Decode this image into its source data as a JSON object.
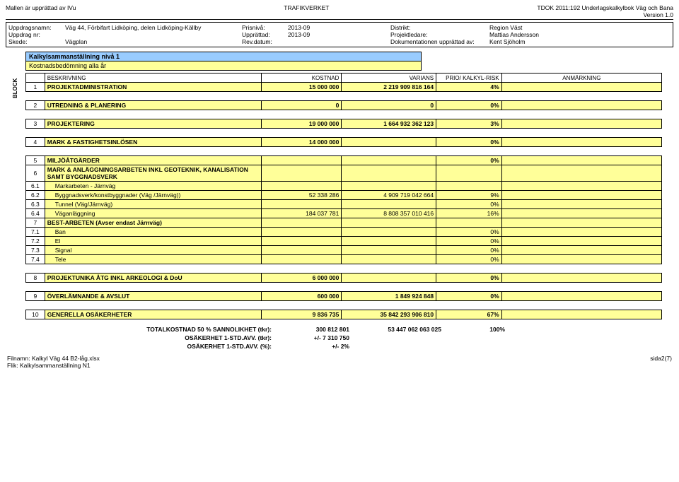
{
  "header": {
    "left": "Mallen är upprättad av IVu",
    "center": "TRAFIKVERKET",
    "right1": "TDOK 2011:192 Underlagskalkylbok Väg och Bana",
    "right2": "Version 1.0"
  },
  "meta": {
    "rows": [
      {
        "l1": "Uppdragsnamn:",
        "v1": "Väg 44, Förbifart Lidköping, delen Lidköping-Källby",
        "l2": "Prisnivå:",
        "v2": "2013-09",
        "l3": "Distrikt:",
        "v3": "Region Väst"
      },
      {
        "l1": "Uppdrag nr:",
        "v1": "",
        "l2": "Upprättad:",
        "v2": "2013-09",
        "l3": "Projektledare:",
        "v3": "Mattias Andersson"
      },
      {
        "l1": "Skede:",
        "v1": "Vägplan",
        "l2": "Rev.datum:",
        "v2": "",
        "l3": "Dokumentationen upprättad av:",
        "v3": "Kent Sjöholm"
      }
    ]
  },
  "title": {
    "line1": "Kalkylsammanställning nivå 1",
    "line2": "Kostnadsbedömning alla år"
  },
  "block_label": "BLOCK",
  "columns": {
    "desc": "BESKRIVNING",
    "kost": "KOSTNAD",
    "var": "VARIANS",
    "risk": "PRIO/ KALKYL-RISK",
    "anm": "ANMÄRKNING"
  },
  "groups": [
    {
      "id": "1",
      "desc": "PROJEKTADMINISTRATION",
      "kost": "15 000 000",
      "var": "2 219 909 816 164",
      "risk": "4%",
      "bold": true,
      "yellow": true
    },
    {
      "spacer": true
    },
    {
      "id": "2",
      "desc": "UTREDNING & PLANERING",
      "kost": "0",
      "var": "0",
      "risk": "0%",
      "bold": true,
      "yellow": true
    },
    {
      "spacer": true
    },
    {
      "id": "3",
      "desc": "PROJEKTERING",
      "kost": "19 000 000",
      "var": "1 664 932 362 123",
      "risk": "3%",
      "bold": true,
      "yellow": true
    },
    {
      "spacer": true
    },
    {
      "id": "4",
      "desc": "MARK & FASTIGHETSINLÖSEN",
      "kost": "14 000 000",
      "var": "",
      "risk": "0%",
      "bold": true,
      "yellow": true
    },
    {
      "spacer": true
    },
    {
      "id": "5",
      "desc": "MILJÖÅTGÄRDER",
      "kost": "",
      "var": "",
      "risk": "0%",
      "bold": true,
      "yellow": true
    },
    {
      "id": "6",
      "desc": "MARK & ANLÄGGNINGSARBETEN INKL GEOTEKNIK, KANALISATION SAMT BYGGNADSVERK",
      "kost": "",
      "var": "",
      "risk": "",
      "bold": true,
      "yellow": true
    },
    {
      "id": "6.1",
      "desc": "Markarbeten - Järnväg",
      "kost": "",
      "var": "",
      "risk": "",
      "indent": true,
      "yellow": true
    },
    {
      "id": "6.2",
      "desc": "Byggnadsverk/konstbyggnader (Väg /Järnväg))",
      "kost": "52 338 286",
      "var": "4 909 719 042 664",
      "risk": "9%",
      "indent": true,
      "yellow": true
    },
    {
      "id": "6.3",
      "desc": "Tunnel (Väg/Järnväg)",
      "kost": "",
      "var": "",
      "risk": "0%",
      "indent": true,
      "yellow": true
    },
    {
      "id": "6.4",
      "desc": "Väganläggning",
      "kost": "184 037 781",
      "var": "8 808 357 010 416",
      "risk": "16%",
      "indent": true,
      "yellow": true
    },
    {
      "id": "7",
      "desc": "BEST-ARBETEN (Avser endast Järnväg)",
      "kost": "",
      "var": "",
      "risk": "",
      "bold": true,
      "yellow": true
    },
    {
      "id": "7.1",
      "desc": "Ban",
      "kost": "",
      "var": "",
      "risk": "0%",
      "indent": true,
      "yellow": true
    },
    {
      "id": "7.2",
      "desc": "El",
      "kost": "",
      "var": "",
      "risk": "0%",
      "indent": true,
      "yellow": true
    },
    {
      "id": "7.3",
      "desc": "Signal",
      "kost": "",
      "var": "",
      "risk": "0%",
      "indent": true,
      "yellow": true
    },
    {
      "id": "7.4",
      "desc": "Tele",
      "kost": "",
      "var": "",
      "risk": "0%",
      "indent": true,
      "yellow": true
    },
    {
      "spacer": true
    },
    {
      "id": "8",
      "desc": "PROJEKTUNIKA ÅTG INKL ARKEOLOGI & DoU",
      "kost": "6 000 000",
      "var": "",
      "risk": "0%",
      "bold": true,
      "yellow": true
    },
    {
      "spacer": true
    },
    {
      "id": "9",
      "desc": "ÖVERLÄMNANDE & AVSLUT",
      "kost": "600 000",
      "var": "1 849 924 848",
      "risk": "0%",
      "bold": true,
      "yellow": true
    },
    {
      "spacer": true
    },
    {
      "id": "10",
      "desc": "GENERELLA OSÄKERHETER",
      "kost": "9 836 735",
      "var": "35 842 293 906 810",
      "risk": "67%",
      "bold": true,
      "yellow": true
    }
  ],
  "totals": [
    {
      "lbl": "TOTALKOSTNAD 50 % SANNOLIKHET (tkr):",
      "v1": "300 812 801",
      "v2": "53 447 062 063 025",
      "v3": "100%"
    },
    {
      "lbl": "OSÄKERHET 1-STD.AVV. (tkr):",
      "v1": "+/- 7 310 750",
      "v2": "",
      "v3": ""
    },
    {
      "lbl": "OSÄKERHET 1-STD.AVV. (%):",
      "v1": "+/- 2%",
      "v2": "",
      "v3": ""
    }
  ],
  "footer": {
    "file": "Filnamn: Kalkyl Väg 44 B2-låg.xlsx",
    "tab": "Flik: Kalkylsammanställning N1",
    "page": "sida2(7)"
  },
  "colors": {
    "blue": "#99ccff",
    "yellow": "#ffff99",
    "border": "#000000",
    "bg": "#ffffff"
  }
}
